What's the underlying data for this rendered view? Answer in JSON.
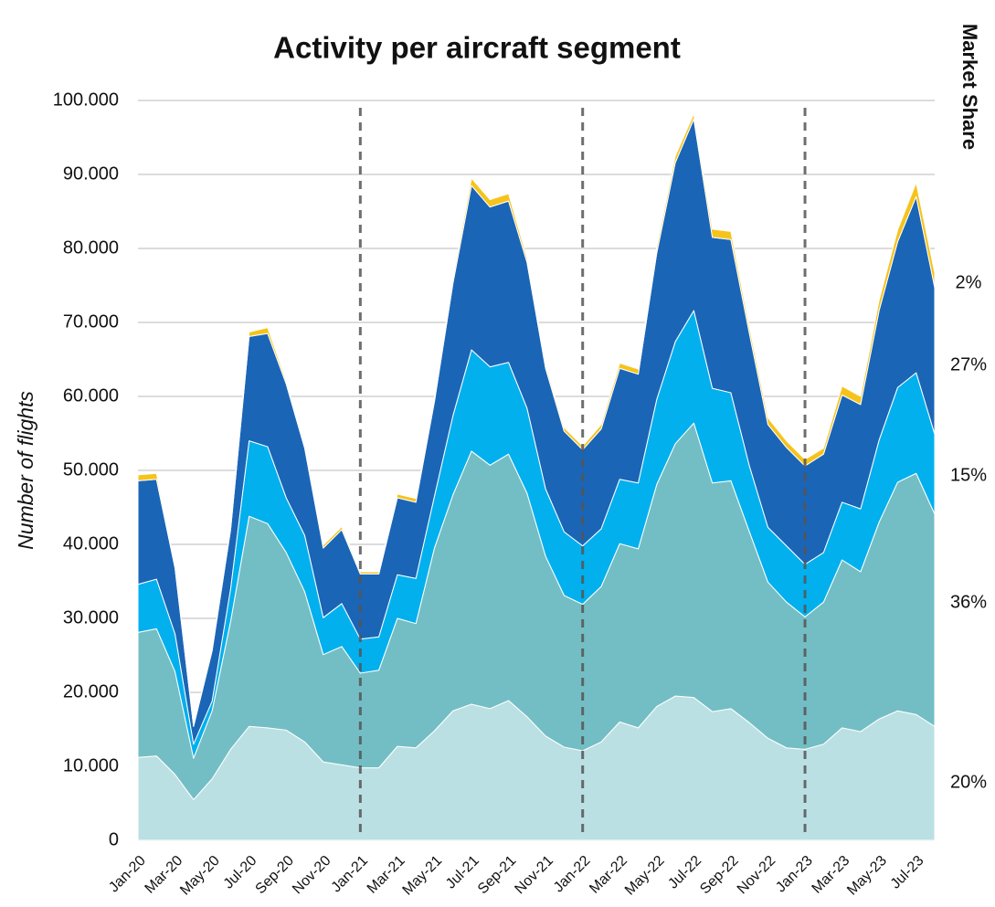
{
  "chart_data": {
    "type": "stacked_area",
    "title": "Activity per aircraft segment",
    "y_label": "Number of flights",
    "share_title": "Market Share",
    "categories": [
      "Jan-20",
      null,
      "Mar-20",
      null,
      "May-20",
      null,
      "Jul-20",
      null,
      "Sep-20",
      null,
      "Nov-20",
      null,
      "Jan-21",
      null,
      "Mar-21",
      null,
      "May-21",
      null,
      "Jul-21",
      null,
      "Sep-21",
      null,
      "Nov-21",
      null,
      "Jan-22",
      null,
      "Mar-22",
      null,
      "May-22",
      null,
      "Jul-22",
      null,
      "Sep-22",
      null,
      "Nov-22",
      null,
      "Jan-23",
      null,
      "Mar-23",
      null,
      "May-23",
      null,
      "Jul-23",
      null
    ],
    "ylim": [
      0,
      100000
    ],
    "yticks": [
      0,
      {
        "value": 10000,
        "label": "10.000"
      },
      {
        "value": 20000,
        "label": "20.000"
      },
      {
        "value": 30000,
        "label": "30.000"
      },
      {
        "value": 40000,
        "label": "40.000"
      },
      {
        "value": 50000,
        "label": "50.000"
      },
      {
        "value": 60000,
        "label": "60.000"
      },
      {
        "value": 70000,
        "label": "70.000"
      },
      {
        "value": 80000,
        "label": "80.000"
      },
      {
        "value": 90000,
        "label": "90.000"
      },
      {
        "value": 100000,
        "label": "100.000"
      }
    ],
    "grid": true,
    "series": [
      {
        "color": "#bbe0e3",
        "share_label": "20%",
        "values": [
          11200,
          11400,
          8900,
          5500,
          8300,
          12300,
          15400,
          15200,
          14900,
          13300,
          10600,
          10200,
          9800,
          9800,
          12700,
          12500,
          14800,
          17500,
          18400,
          17800,
          18900,
          16700,
          14100,
          12600,
          12100,
          13300,
          16000,
          15200,
          18100,
          19500,
          19300,
          17400,
          17800,
          15900,
          13800,
          12500,
          12300,
          13000,
          15200,
          14700,
          16400,
          17500,
          17000,
          15400
        ]
      },
      {
        "color": "#73bec4",
        "share_label": "36%",
        "values": [
          16900,
          17200,
          13900,
          5600,
          9200,
          17300,
          28400,
          27600,
          24000,
          20300,
          14500,
          16000,
          12800,
          13200,
          17300,
          16800,
          24700,
          29200,
          34200,
          32900,
          33300,
          30200,
          24300,
          20500,
          19800,
          21000,
          24100,
          24200,
          30000,
          34100,
          37100,
          30900,
          30800,
          25800,
          21100,
          19700,
          17900,
          19200,
          22700,
          21600,
          26600,
          30900,
          32600,
          28700
        ]
      },
      {
        "color": "#02b0ee",
        "share_label": "15%",
        "values": [
          6500,
          6700,
          5100,
          1900,
          1300,
          4400,
          10200,
          10400,
          7400,
          7600,
          5000,
          5800,
          4600,
          4500,
          5900,
          6100,
          7000,
          10700,
          13700,
          13300,
          12400,
          11500,
          9100,
          8600,
          7900,
          7800,
          8700,
          8900,
          11500,
          13800,
          15200,
          12800,
          11900,
          8900,
          7400,
          7600,
          7100,
          6700,
          7800,
          8500,
          11100,
          12800,
          13600,
          10800
        ]
      },
      {
        "color": "#1b65b6",
        "share_label": "27%",
        "values": [
          14000,
          13500,
          8900,
          2400,
          6800,
          8000,
          14100,
          15300,
          15400,
          11800,
          9400,
          10000,
          8800,
          8500,
          10400,
          10300,
          12800,
          17900,
          22200,
          21600,
          21800,
          19700,
          16300,
          13600,
          13000,
          13500,
          15000,
          14700,
          19800,
          24200,
          25900,
          20400,
          20700,
          17900,
          13900,
          13300,
          13300,
          13300,
          14500,
          14100,
          17500,
          19700,
          23800,
          19800
        ]
      },
      {
        "color": "#f6c31c",
        "share_label": "2%",
        "values": [
          800,
          800,
          200,
          100,
          200,
          300,
          600,
          800,
          400,
          300,
          400,
          400,
          300,
          300,
          500,
          500,
          600,
          700,
          1000,
          1000,
          1000,
          600,
          500,
          500,
          500,
          600,
          700,
          700,
          800,
          900,
          700,
          1100,
          1100,
          900,
          900,
          900,
          900,
          800,
          1200,
          1100,
          1400,
          1600,
          1900,
          2000
        ]
      }
    ]
  }
}
